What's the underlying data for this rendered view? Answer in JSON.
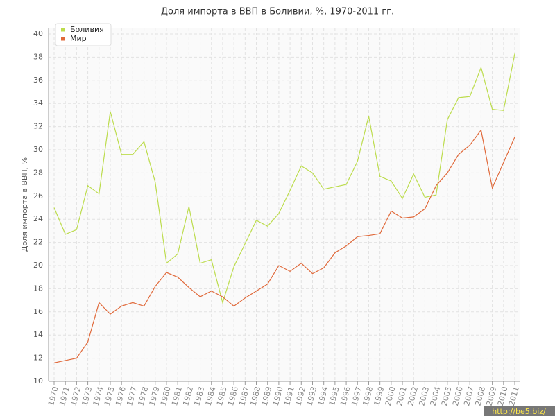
{
  "chart_data": {
    "type": "line",
    "title": "Доля импорта в ВВП в Боливии, %, 1970-2011 гг.",
    "y_label": "Доля импорта в ВВП, %",
    "watermark": "http://be5.biz/",
    "categories": [
      "1970",
      "1971",
      "1972",
      "1973",
      "1974",
      "1975",
      "1976",
      "1977",
      "1978",
      "1979",
      "1980",
      "1981",
      "1982",
      "1983",
      "1984",
      "1985",
      "1986",
      "1987",
      "1988",
      "1989",
      "1990",
      "1991",
      "1992",
      "1993",
      "1994",
      "1995",
      "1996",
      "1997",
      "1998",
      "1999",
      "2000",
      "2001",
      "2002",
      "2003",
      "2004",
      "2005",
      "2006",
      "2007",
      "2008",
      "2009",
      "2010",
      "2011"
    ],
    "series": [
      {
        "name": "Боливия",
        "color": "#bcdc4c",
        "values": [
          25.0,
          22.7,
          23.1,
          26.9,
          26.2,
          33.3,
          29.6,
          29.6,
          30.7,
          27.2,
          20.2,
          21.0,
          25.1,
          20.2,
          20.5,
          16.8,
          19.9,
          21.9,
          23.9,
          23.4,
          24.5,
          26.5,
          28.6,
          28.0,
          26.6,
          26.8,
          27.0,
          29.0,
          32.9,
          27.7,
          27.3,
          25.8,
          27.9,
          25.9,
          26.1,
          32.6,
          34.5,
          34.6,
          37.1,
          33.5,
          33.4,
          38.3
        ]
      },
      {
        "name": "Мир",
        "color": "#e0693a",
        "values": [
          11.6,
          11.8,
          12.0,
          13.4,
          16.8,
          15.8,
          16.5,
          16.8,
          16.5,
          18.2,
          19.4,
          19.0,
          18.1,
          17.3,
          17.8,
          17.3,
          16.5,
          17.2,
          17.8,
          18.4,
          20.0,
          19.5,
          20.2,
          19.3,
          19.8,
          21.1,
          21.7,
          22.5,
          22.6,
          22.75,
          24.7,
          24.1,
          24.2,
          24.9,
          26.9,
          28.0,
          29.6,
          30.4,
          31.7,
          26.7,
          28.9,
          31.1
        ]
      }
    ],
    "ylim": [
      10,
      40
    ],
    "yticks": [
      10,
      12,
      14,
      16,
      18,
      20,
      22,
      24,
      26,
      28,
      30,
      32,
      34,
      36,
      38,
      40
    ],
    "grid": true,
    "legend": "top-left"
  }
}
